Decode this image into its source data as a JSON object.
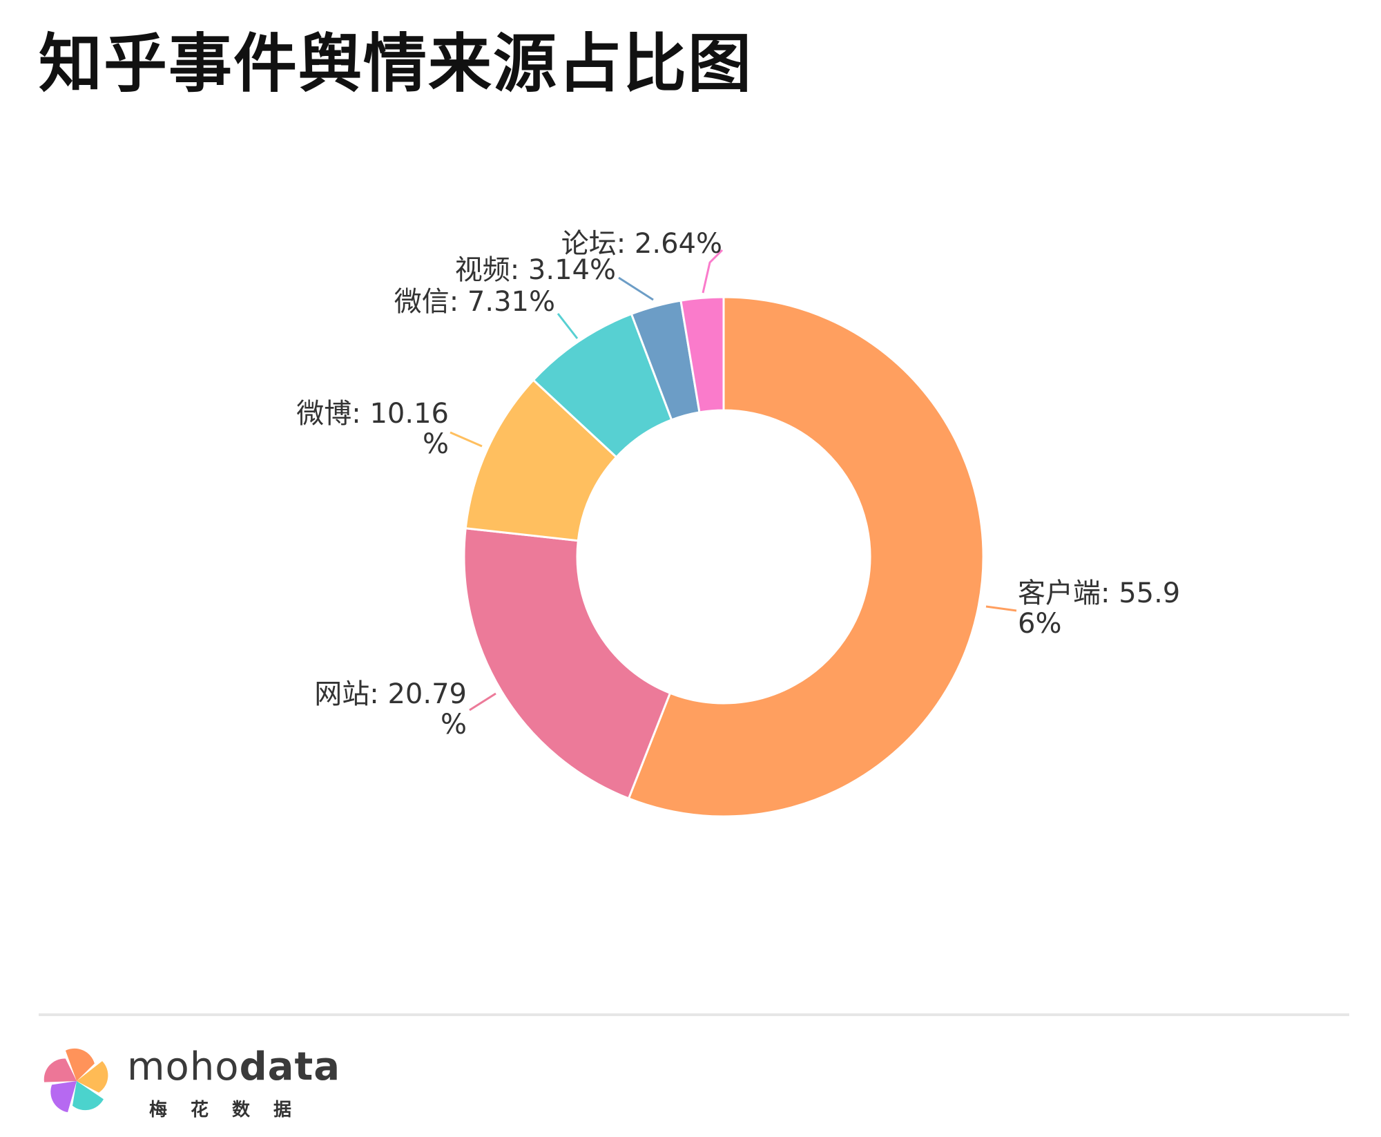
{
  "page": {
    "title": "知乎事件舆情来源占比图"
  },
  "chart_data": {
    "type": "pie",
    "donut": true,
    "title": "知乎事件舆情来源占比图",
    "start_angle_deg": 0,
    "direction": "clockwise",
    "slices": [
      {
        "name": "客户端",
        "value": 55.96,
        "label_line1": "客户端: 55.9",
        "label_line2": "6%",
        "color": "#FF9F5F"
      },
      {
        "name": "网站",
        "value": 20.79,
        "label_line1": "网站: 20.79",
        "label_line2": "%",
        "color": "#EC7A99"
      },
      {
        "name": "微博",
        "value": 10.16,
        "label_line1": "微博: 10.16",
        "label_line2": "%",
        "color": "#FFBF5F"
      },
      {
        "name": "微信",
        "value": 7.31,
        "label_line1": "微信: 7.31%",
        "label_line2": "",
        "color": "#57D0D2"
      },
      {
        "name": "视频",
        "value": 3.14,
        "label_line1": "视频: 3.14%",
        "label_line2": "",
        "color": "#6C9DC6"
      },
      {
        "name": "论坛",
        "value": 2.64,
        "label_line1": "论坛: 2.64%",
        "label_line2": "",
        "color": "#FA7BCB"
      }
    ]
  },
  "brand": {
    "name_light": "moho",
    "name_bold": "data",
    "subtitle": "梅花数据",
    "logo_colors": [
      "#FF8A4C",
      "#FFB547",
      "#3CCFC9",
      "#B05CF0",
      "#EC6A8E"
    ]
  }
}
